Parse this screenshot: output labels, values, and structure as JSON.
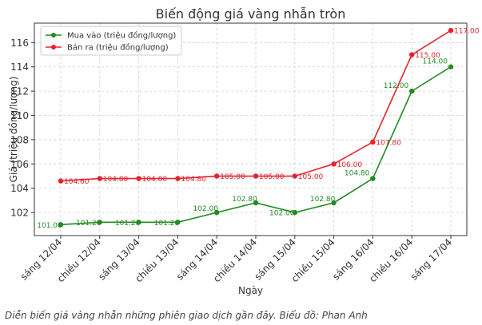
{
  "chart_data": {
    "type": "line",
    "title": "Biến động giá vàng nhẫn tròn",
    "xlabel": "Ngày",
    "ylabel": "Giá (triệu đồng/lượng)",
    "categories": [
      "sáng 12/04",
      "chiều 12/04",
      "sáng 13/04",
      "chiều 13/04",
      "sáng 14/04",
      "chiều 14/04",
      "sáng 15/04",
      "chiều 15/04",
      "sáng 16/04",
      "chiều 16/04",
      "sáng 17/04"
    ],
    "ylim": [
      100.1,
      117.6
    ],
    "yticks": [
      102,
      104,
      106,
      108,
      110,
      112,
      114,
      116
    ],
    "grid": true,
    "legend_position": "top-left",
    "series": [
      {
        "name": "Mua vào (triệu đồng/lượng)",
        "color": "#228B22",
        "values": [
          101.0,
          101.2,
          101.2,
          101.2,
          102.0,
          102.8,
          102.0,
          102.8,
          104.8,
          112.0,
          114.0
        ],
        "labels": [
          "101.00",
          "101.20",
          "101.20",
          "101.20",
          "102.00",
          "102.80",
          "102.00",
          "102.80",
          "104.80",
          "112.00",
          "114.00"
        ]
      },
      {
        "name": "Bán ra (triệu đồng/lượng)",
        "color": "#E8212B",
        "values": [
          104.6,
          104.8,
          104.8,
          104.8,
          105.0,
          105.0,
          105.0,
          106.0,
          107.8,
          115.0,
          117.0
        ],
        "labels": [
          "104.60",
          "104.80",
          "104.80",
          "104.80",
          "105.00",
          "105.00",
          "105.00",
          "106.00",
          "107.80",
          "115.00",
          "117.00"
        ]
      }
    ]
  },
  "caption": "Diễn biến giá vàng nhẫn những phiên giao dịch gần đây. Biểu đồ: Phan Anh"
}
